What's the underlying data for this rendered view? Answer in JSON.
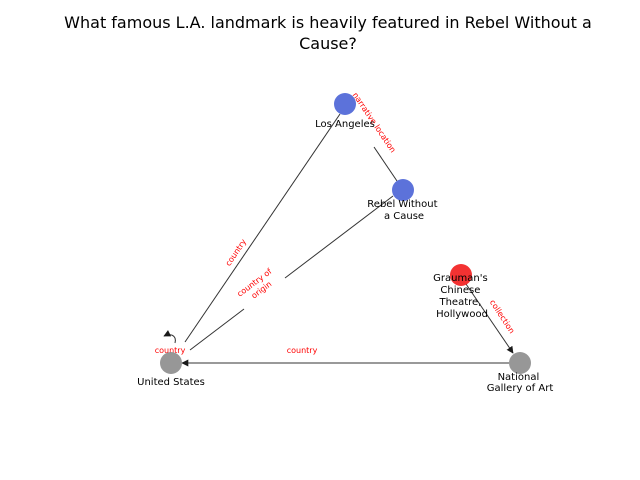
{
  "question": {
    "title_line1": "What famous L.A. landmark is heavily featured in Rebel Without a",
    "title_line2": "Cause?"
  },
  "colors": {
    "entity_blue": "#4a63d6",
    "answer_red": "#f21c1c",
    "other_gray": "#8c8c8c",
    "edge_label_red": "#ff0000",
    "edge_stroke": "#333333"
  },
  "nodes": {
    "los_angeles": {
      "label": "Los Angeles",
      "color": "#4a63d6"
    },
    "rebel_without_a_cause": {
      "label": "Rebel Without a Cause",
      "color": "#4a63d6"
    },
    "graumans_chinese_theatre": {
      "label": "Grauman's Chinese Theatre, Hollywood",
      "color": "#f21c1c"
    },
    "national_gallery_of_art": {
      "label": "National Gallery of Art",
      "color": "#8c8c8c"
    },
    "united_states": {
      "label": "United States",
      "color": "#8c8c8c"
    }
  },
  "edges": {
    "narrative_location": {
      "label": "narrative location"
    },
    "country_la": {
      "label": "country"
    },
    "country_of_origin": {
      "label": "country of origin"
    },
    "collection": {
      "label": "collection"
    },
    "country_nga": {
      "label": "country"
    },
    "country_self": {
      "label": "country"
    }
  }
}
